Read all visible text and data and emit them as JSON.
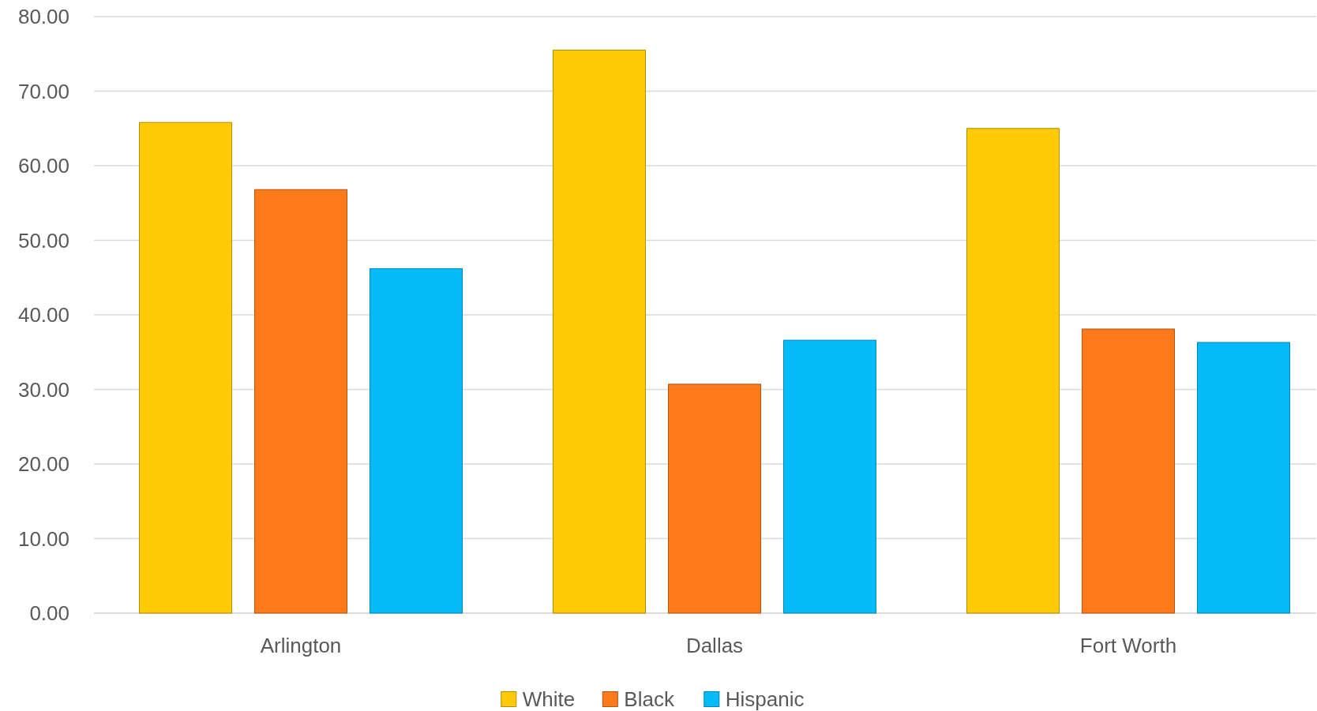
{
  "chart_data": {
    "type": "bar",
    "categories": [
      "Arlington",
      "Dallas",
      "Fort Worth"
    ],
    "series": [
      {
        "name": "White",
        "color": "#fdca05",
        "values": [
          65.8,
          75.5,
          65.0
        ]
      },
      {
        "name": "Black",
        "color": "#fc7a19",
        "values": [
          56.8,
          30.7,
          38.1
        ]
      },
      {
        "name": "Hispanic",
        "color": "#05bbfa",
        "values": [
          46.2,
          36.6,
          36.3
        ]
      }
    ],
    "ylim": [
      0,
      80
    ],
    "yticks": [
      {
        "value": 0,
        "label": "0.00"
      },
      {
        "value": 10,
        "label": "10.00"
      },
      {
        "value": 20,
        "label": "20.00"
      },
      {
        "value": 30,
        "label": "30.00"
      },
      {
        "value": 40,
        "label": "40.00"
      },
      {
        "value": 50,
        "label": "50.00"
      },
      {
        "value": 60,
        "label": "60.00"
      },
      {
        "value": 70,
        "label": "70.00"
      },
      {
        "value": 80,
        "label": "80.00"
      }
    ],
    "grid": "y",
    "legend": "bottom"
  }
}
